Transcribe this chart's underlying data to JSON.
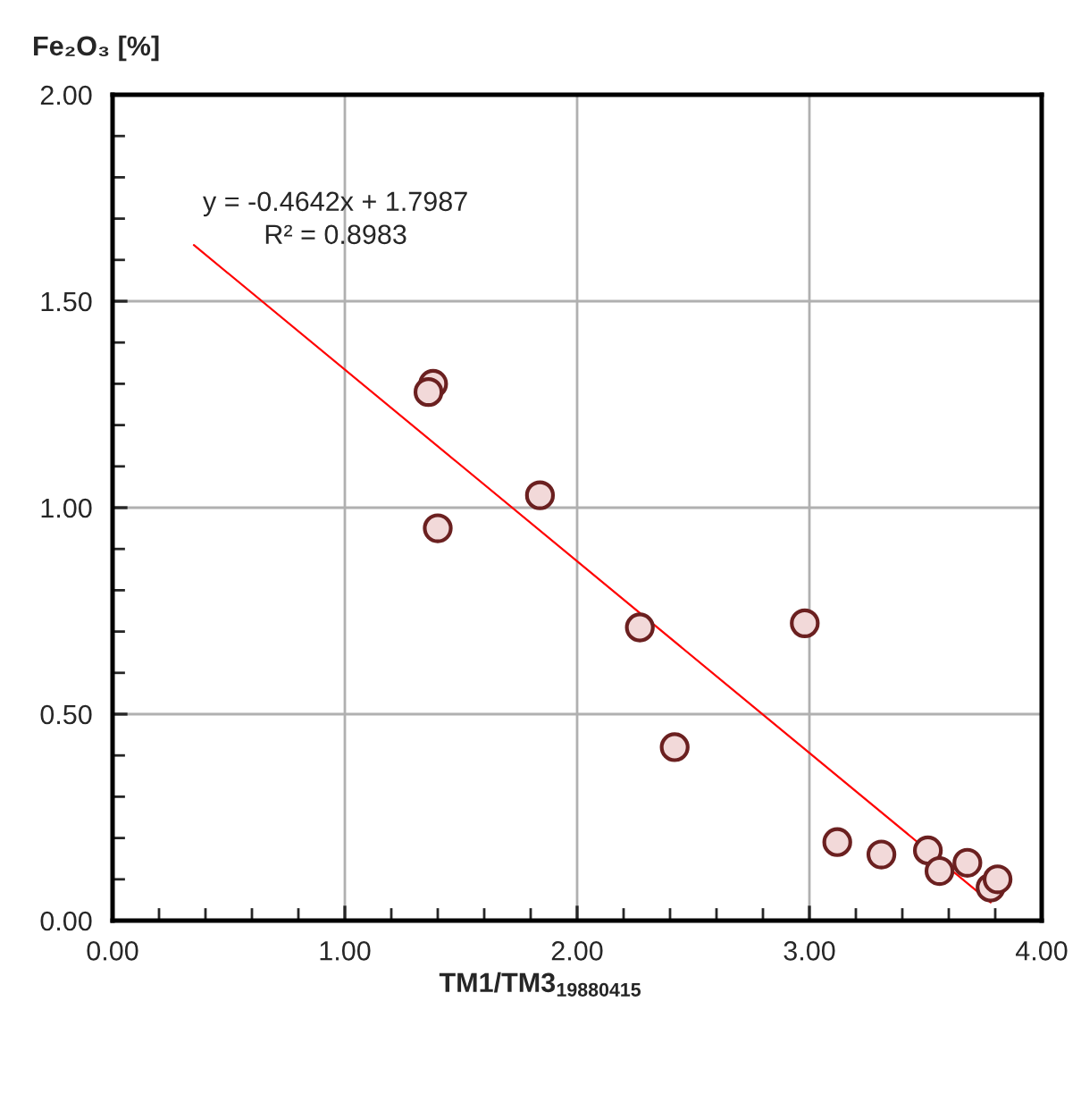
{
  "chart_data": {
    "type": "scatter",
    "xlabel": "TM1/TM3$_{19880415}$",
    "ylabel": "Fe₂O₃ [%]",
    "annotations": [
      "y = -0.4642x + 1.7987",
      "R² = 0.8983"
    ],
    "series": [
      {
        "color": "#f2d9d9",
        "x": [
          1.38,
          1.36,
          1.4,
          1.84,
          2.27,
          2.42,
          2.98,
          3.12,
          3.31,
          3.51,
          3.56,
          3.68,
          3.78,
          3.81
        ],
        "values": [
          1.3,
          1.28,
          0.95,
          1.03,
          0.71,
          0.42,
          0.72,
          0.19,
          0.16,
          0.17,
          0.12,
          0.14,
          0.08,
          0.1
        ],
        "marker": "circle"
      },
      {
        "type": "line",
        "color": "#ff0000",
        "x": [
          0.35,
          3.78
        ],
        "values": [
          1.636,
          0.044
        ]
      }
    ],
    "xlim": [
      0,
      4
    ],
    "xticks": [
      {
        "value": 0,
        "label": "0.00"
      },
      {
        "value": 1,
        "label": "1.00"
      },
      {
        "value": 2,
        "label": "2.00"
      },
      {
        "value": 3,
        "label": "3.00"
      },
      {
        "value": 4,
        "label": "4.00"
      }
    ],
    "ylim": [
      0,
      2
    ],
    "yticks": [
      {
        "value": 0,
        "label": "0.00"
      },
      {
        "value": 0.5,
        "label": "0.50"
      },
      {
        "value": 1,
        "label": "1.00"
      },
      {
        "value": 1.5,
        "label": "1.50"
      },
      {
        "value": 2,
        "label": "2.00"
      }
    ],
    "grid": true,
    "legend": false
  }
}
